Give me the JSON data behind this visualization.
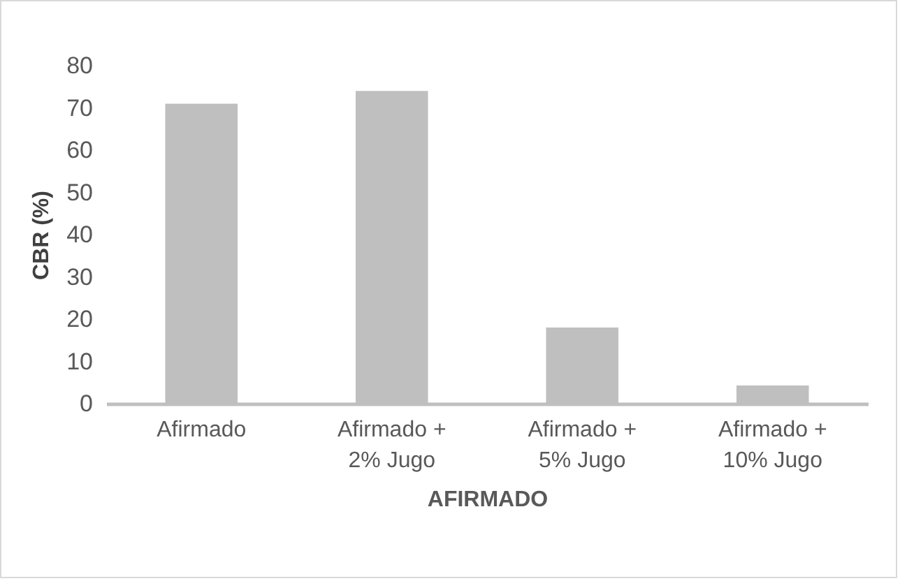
{
  "chart_data": {
    "type": "bar",
    "xlabel": "AFIRMADO",
    "ylabel": "CBR (%)",
    "categories": [
      "Afirmado",
      "Afirmado + 2% Jugo",
      "Afirmado + 5% Jugo",
      "Afirmado + 10% Jugo"
    ],
    "values": [
      71,
      74,
      18,
      4.3
    ],
    "color": "#bfbfbf",
    "ylim": [
      0,
      80
    ],
    "yticks": [
      0,
      10,
      20,
      30,
      40,
      50,
      60,
      70,
      80
    ],
    "grid": false
  }
}
